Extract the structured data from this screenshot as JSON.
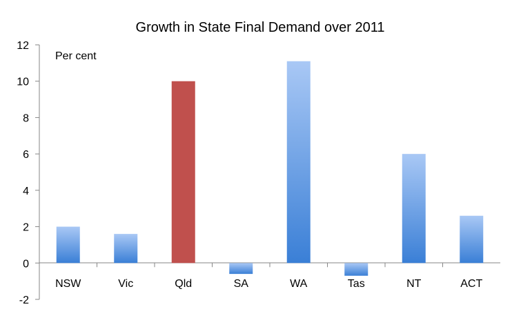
{
  "chart_data": {
    "type": "bar",
    "title": "Growth in State Final Demand over 2011",
    "unit_label": "Per cent",
    "categories": [
      "NSW",
      "Vic",
      "Qld",
      "SA",
      "WA",
      "Tas",
      "NT",
      "ACT"
    ],
    "values": [
      2.0,
      1.6,
      10.0,
      -0.6,
      11.1,
      -0.7,
      6.0,
      2.6
    ],
    "highlight": "Qld",
    "ylim": [
      -2,
      12
    ],
    "yticks": [
      -2,
      0,
      2,
      4,
      6,
      8,
      10,
      12
    ],
    "grid": false,
    "legend": "none",
    "colors": {
      "bar_top": "#a9c8f5",
      "bar_bottom": "#3a7fd6",
      "highlight": "#c0504d",
      "axis": "#868686"
    }
  }
}
